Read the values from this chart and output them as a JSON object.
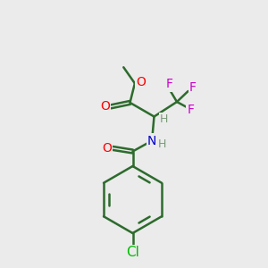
{
  "bg_color": "#ebebeb",
  "bond_color": "#2d6b2d",
  "bond_width": 1.8,
  "atom_colors": {
    "O": "#ff0000",
    "N": "#0000cc",
    "F": "#cc00cc",
    "Cl": "#00bb00",
    "C": "#000000",
    "H": "#7a9a7a"
  },
  "font_size": 10,
  "figsize": [
    3.0,
    3.0
  ],
  "dpi": 100
}
